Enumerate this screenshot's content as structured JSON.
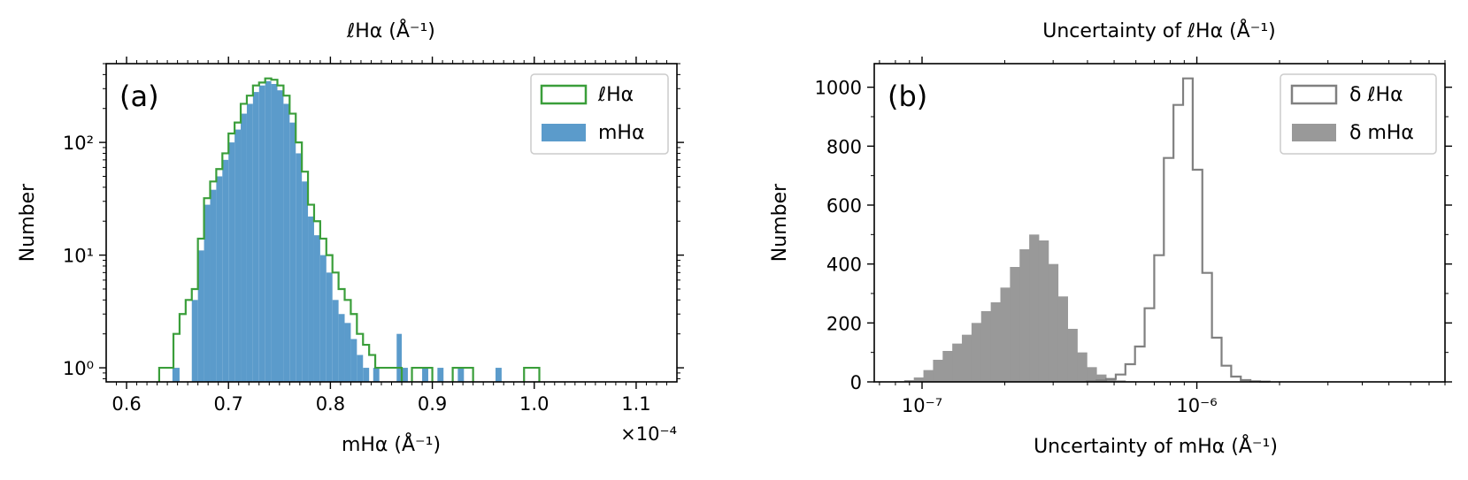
{
  "chart_data": [
    {
      "type": "histogram",
      "panel_label": "(a)",
      "top_xlabel": "ℓHα (Å⁻¹)",
      "xlabel": "mHα (Å⁻¹)",
      "ylabel": "Number",
      "x_offset_text": "×10⁻⁴",
      "xscale": "linear",
      "yscale": "log",
      "xlim": [
        0.58,
        1.14
      ],
      "ylim": [
        0.75,
        500
      ],
      "x_ticks": [
        "0.6",
        "0.7",
        "0.8",
        "0.9",
        "1.0",
        "1.1"
      ],
      "y_ticks": [
        "10⁰",
        "10¹",
        "10²"
      ],
      "legend_position": "upper right",
      "series": [
        {
          "name": "ℓHα",
          "style": "step",
          "color": "#3a9e3a",
          "bins": [
            {
              "x0": 0.632,
              "x1": 0.646,
              "count": 1
            },
            {
              "x0": 0.646,
              "x1": 0.652,
              "count": 2
            },
            {
              "x0": 0.652,
              "x1": 0.658,
              "count": 3
            },
            {
              "x0": 0.658,
              "x1": 0.664,
              "count": 4
            },
            {
              "x0": 0.664,
              "x1": 0.67,
              "count": 5
            },
            {
              "x0": 0.67,
              "x1": 0.676,
              "count": 14
            },
            {
              "x0": 0.676,
              "x1": 0.682,
              "count": 32
            },
            {
              "x0": 0.682,
              "x1": 0.688,
              "count": 45
            },
            {
              "x0": 0.688,
              "x1": 0.694,
              "count": 58
            },
            {
              "x0": 0.694,
              "x1": 0.7,
              "count": 80
            },
            {
              "x0": 0.7,
              "x1": 0.706,
              "count": 120
            },
            {
              "x0": 0.706,
              "x1": 0.712,
              "count": 150
            },
            {
              "x0": 0.712,
              "x1": 0.718,
              "count": 220
            },
            {
              "x0": 0.718,
              "x1": 0.724,
              "count": 260
            },
            {
              "x0": 0.724,
              "x1": 0.73,
              "count": 320
            },
            {
              "x0": 0.73,
              "x1": 0.736,
              "count": 340
            },
            {
              "x0": 0.736,
              "x1": 0.742,
              "count": 370
            },
            {
              "x0": 0.742,
              "x1": 0.748,
              "count": 360
            },
            {
              "x0": 0.748,
              "x1": 0.754,
              "count": 320
            },
            {
              "x0": 0.754,
              "x1": 0.76,
              "count": 260
            },
            {
              "x0": 0.76,
              "x1": 0.766,
              "count": 180
            },
            {
              "x0": 0.766,
              "x1": 0.772,
              "count": 100
            },
            {
              "x0": 0.772,
              "x1": 0.778,
              "count": 55
            },
            {
              "x0": 0.778,
              "x1": 0.784,
              "count": 28
            },
            {
              "x0": 0.784,
              "x1": 0.79,
              "count": 20
            },
            {
              "x0": 0.79,
              "x1": 0.796,
              "count": 14
            },
            {
              "x0": 0.796,
              "x1": 0.802,
              "count": 10
            },
            {
              "x0": 0.802,
              "x1": 0.808,
              "count": 7
            },
            {
              "x0": 0.808,
              "x1": 0.814,
              "count": 5
            },
            {
              "x0": 0.814,
              "x1": 0.82,
              "count": 4
            },
            {
              "x0": 0.82,
              "x1": 0.826,
              "count": 3
            },
            {
              "x0": 0.826,
              "x1": 0.832,
              "count": 2
            },
            {
              "x0": 0.832,
              "x1": 0.838,
              "count": 1.6
            },
            {
              "x0": 0.838,
              "x1": 0.844,
              "count": 1.3
            },
            {
              "x0": 0.844,
              "x1": 0.85,
              "count": 1
            },
            {
              "x0": 0.85,
              "x1": 0.87,
              "count": 1
            },
            {
              "x0": 0.88,
              "x1": 0.9,
              "count": 1
            },
            {
              "x0": 0.92,
              "x1": 0.94,
              "count": 1
            },
            {
              "x0": 0.99,
              "x1": 1.005,
              "count": 1
            }
          ]
        },
        {
          "name": "mHα",
          "style": "filled",
          "color": "#5b9bcb",
          "bins": [
            {
              "x0": 0.645,
              "x1": 0.652,
              "count": 1
            },
            {
              "x0": 0.664,
              "x1": 0.67,
              "count": 4
            },
            {
              "x0": 0.67,
              "x1": 0.676,
              "count": 11
            },
            {
              "x0": 0.676,
              "x1": 0.682,
              "count": 28
            },
            {
              "x0": 0.682,
              "x1": 0.688,
              "count": 38
            },
            {
              "x0": 0.688,
              "x1": 0.694,
              "count": 50
            },
            {
              "x0": 0.694,
              "x1": 0.7,
              "count": 70
            },
            {
              "x0": 0.7,
              "x1": 0.706,
              "count": 100
            },
            {
              "x0": 0.706,
              "x1": 0.712,
              "count": 130
            },
            {
              "x0": 0.712,
              "x1": 0.718,
              "count": 180
            },
            {
              "x0": 0.718,
              "x1": 0.724,
              "count": 220
            },
            {
              "x0": 0.724,
              "x1": 0.73,
              "count": 280
            },
            {
              "x0": 0.73,
              "x1": 0.736,
              "count": 320
            },
            {
              "x0": 0.736,
              "x1": 0.742,
              "count": 350
            },
            {
              "x0": 0.742,
              "x1": 0.748,
              "count": 330
            },
            {
              "x0": 0.748,
              "x1": 0.754,
              "count": 290
            },
            {
              "x0": 0.754,
              "x1": 0.76,
              "count": 220
            },
            {
              "x0": 0.76,
              "x1": 0.766,
              "count": 150
            },
            {
              "x0": 0.766,
              "x1": 0.772,
              "count": 80
            },
            {
              "x0": 0.772,
              "x1": 0.778,
              "count": 45
            },
            {
              "x0": 0.778,
              "x1": 0.784,
              "count": 22
            },
            {
              "x0": 0.784,
              "x1": 0.79,
              "count": 15
            },
            {
              "x0": 0.79,
              "x1": 0.796,
              "count": 10
            },
            {
              "x0": 0.796,
              "x1": 0.802,
              "count": 7
            },
            {
              "x0": 0.802,
              "x1": 0.808,
              "count": 4
            },
            {
              "x0": 0.808,
              "x1": 0.814,
              "count": 3
            },
            {
              "x0": 0.814,
              "x1": 0.82,
              "count": 2.5
            },
            {
              "x0": 0.82,
              "x1": 0.826,
              "count": 1.8
            },
            {
              "x0": 0.826,
              "x1": 0.832,
              "count": 1.3
            },
            {
              "x0": 0.832,
              "x1": 0.838,
              "count": 1
            },
            {
              "x0": 0.842,
              "x1": 0.848,
              "count": 1
            },
            {
              "x0": 0.865,
              "x1": 0.87,
              "count": 2
            },
            {
              "x0": 0.87,
              "x1": 0.876,
              "count": 1
            },
            {
              "x0": 0.89,
              "x1": 0.896,
              "count": 1
            },
            {
              "x0": 0.905,
              "x1": 0.911,
              "count": 1
            },
            {
              "x0": 0.925,
              "x1": 0.931,
              "count": 1
            },
            {
              "x0": 0.962,
              "x1": 0.968,
              "count": 1
            }
          ]
        }
      ]
    },
    {
      "type": "histogram",
      "panel_label": "(b)",
      "top_xlabel": "Uncertainty of ℓHα (Å⁻¹)",
      "xlabel": "Uncertainty of mHα (Å⁻¹)",
      "ylabel": "Number",
      "xscale": "log",
      "yscale": "linear",
      "xlim": [
        6.7e-08,
        8e-06
      ],
      "ylim": [
        0,
        1080
      ],
      "x_ticks": [
        {
          "value": 1e-07,
          "label": "10⁻⁷"
        },
        {
          "value": 1e-06,
          "label": "10⁻⁶"
        }
      ],
      "y_ticks": [
        0,
        200,
        400,
        600,
        800,
        1000
      ],
      "legend_position": "upper right",
      "series": [
        {
          "name": "δ ℓHα",
          "style": "step",
          "color": "#808080",
          "log_start": -6.4,
          "log_step": 0.035,
          "counts": [
            2,
            5,
            10,
            25,
            60,
            120,
            250,
            430,
            760,
            940,
            1030,
            720,
            370,
            150,
            55,
            18,
            6,
            2,
            1
          ]
        },
        {
          "name": "δ mHα",
          "style": "filled",
          "color": "#999999",
          "log_start": -7.1,
          "log_step": 0.035,
          "counts": [
            2,
            6,
            15,
            40,
            75,
            105,
            130,
            160,
            200,
            240,
            270,
            320,
            390,
            450,
            500,
            480,
            400,
            290,
            180,
            100,
            50,
            25,
            12,
            5,
            2
          ]
        }
      ]
    }
  ]
}
